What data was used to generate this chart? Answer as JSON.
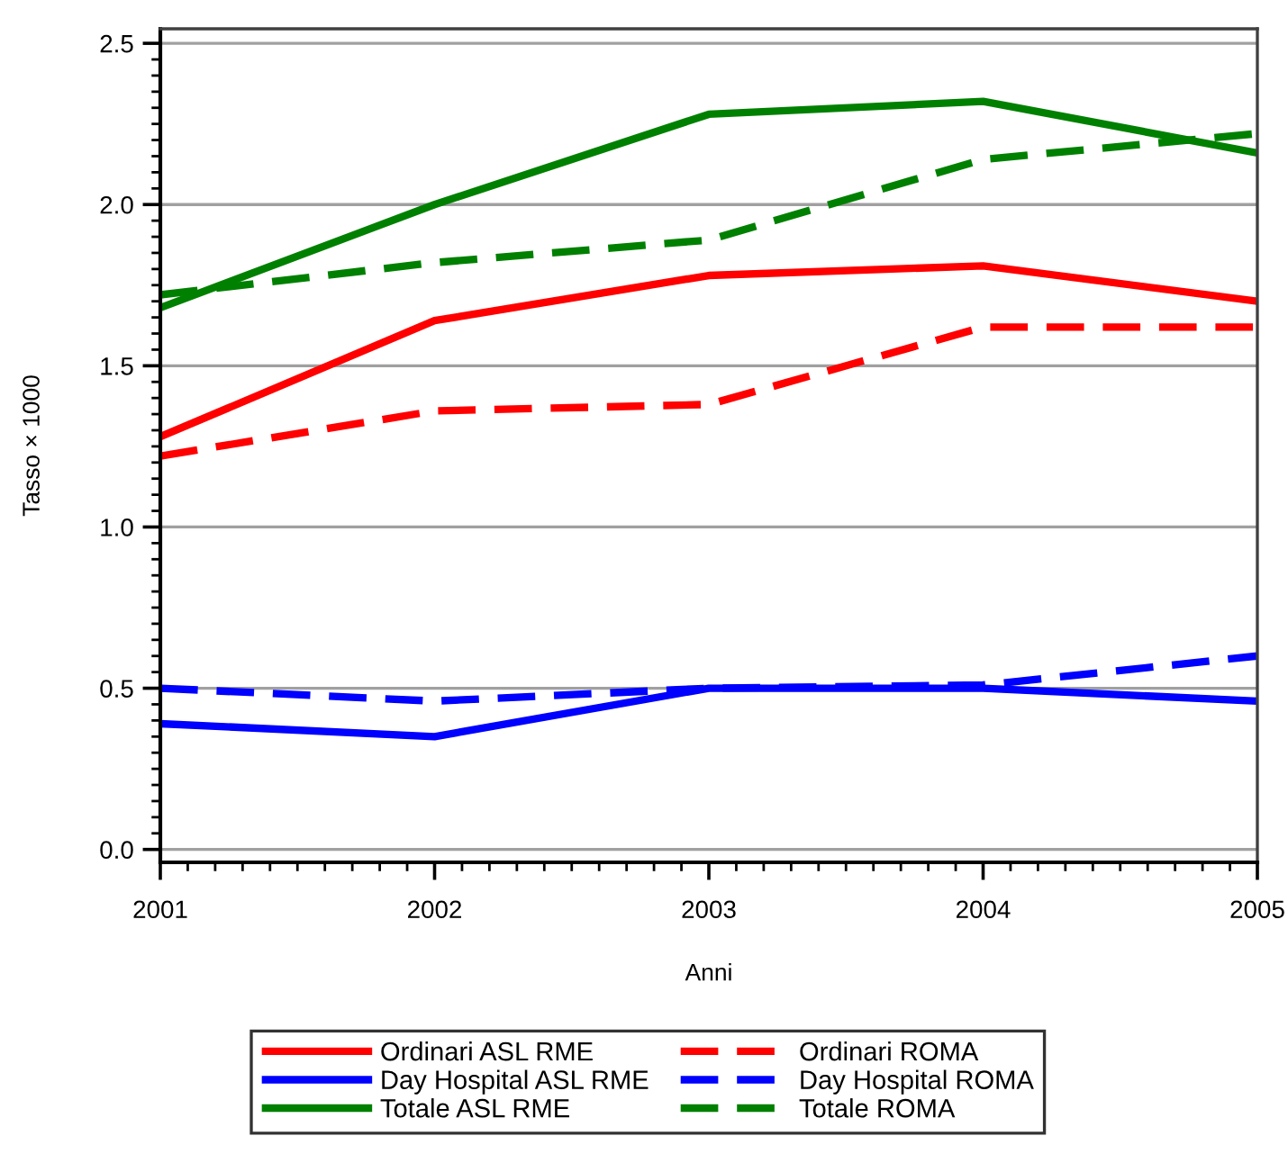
{
  "chart_data": {
    "type": "line",
    "xlabel": "Anni",
    "ylabel": "Tasso × 1000",
    "x": [
      2001,
      2002,
      2003,
      2004,
      2005
    ],
    "xlim": [
      2001,
      2005
    ],
    "xticks": [
      2001,
      2002,
      2003,
      2004,
      2005
    ],
    "ylim": [
      -0.04,
      2.545
    ],
    "yticks": [
      {
        "value": 0,
        "label": "0.0"
      },
      0.5,
      {
        "value": 1,
        "label": "1.0"
      },
      1.5,
      {
        "value": 2,
        "label": "2.0"
      },
      2.5
    ],
    "grid": "y",
    "legend": "bottom",
    "series": [
      {
        "name": "Ordinari ASL RME",
        "color": "#ff0000",
        "line_style": "solid",
        "values": [
          1.28,
          1.64,
          1.78,
          1.81,
          1.7
        ]
      },
      {
        "name": "Day Hospital ASL RME",
        "color": "#0000ff",
        "line_style": "solid",
        "values": [
          0.39,
          0.35,
          0.5,
          0.5,
          0.46
        ]
      },
      {
        "name": "Totale ASL RME",
        "color": "#008000",
        "line_style": "solid",
        "values": [
          1.68,
          2.0,
          2.28,
          2.32,
          2.16
        ]
      },
      {
        "name": "Ordinari ROMA",
        "color": "#ff0000",
        "line_style": "dashed",
        "values": [
          1.22,
          1.36,
          1.38,
          1.62,
          1.62
        ]
      },
      {
        "name": "Day Hospital ROMA",
        "color": "#0000ff",
        "line_style": "dashed",
        "values": [
          0.5,
          0.46,
          0.5,
          0.51,
          0.6
        ]
      },
      {
        "name": "Totale ROMA",
        "color": "#008000",
        "line_style": "dashed",
        "values": [
          1.72,
          1.82,
          1.89,
          2.14,
          2.22
        ]
      }
    ]
  }
}
